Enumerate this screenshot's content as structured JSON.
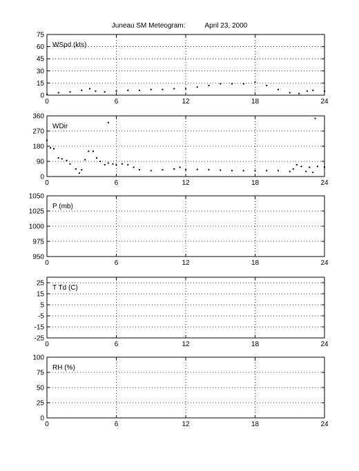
{
  "title": {
    "station": "Juneau SM Meteogram:",
    "date": "April 23, 2000"
  },
  "chart_data": [
    {
      "type": "scatter",
      "panel": "wspd",
      "label": "WSpd (kts)",
      "xlim": [
        0,
        24
      ],
      "xticks": [
        0,
        6,
        12,
        18,
        24
      ],
      "ylim": [
        0,
        75
      ],
      "yticks": [
        0,
        15,
        30,
        45,
        60,
        75
      ],
      "grid": true,
      "points": [
        [
          0,
          1
        ],
        [
          1,
          3
        ],
        [
          2,
          4
        ],
        [
          3,
          6
        ],
        [
          3.7,
          8
        ],
        [
          4.2,
          5
        ],
        [
          5,
          4
        ],
        [
          6,
          5
        ],
        [
          7,
          6
        ],
        [
          8,
          6
        ],
        [
          9,
          7
        ],
        [
          10,
          7
        ],
        [
          11,
          8
        ],
        [
          12,
          8
        ],
        [
          13,
          10
        ],
        [
          14,
          12
        ],
        [
          15,
          14
        ],
        [
          16,
          14
        ],
        [
          17,
          14
        ],
        [
          18,
          16
        ],
        [
          19,
          12
        ],
        [
          20,
          7
        ],
        [
          21,
          3
        ],
        [
          21.8,
          2
        ],
        [
          22.5,
          5
        ],
        [
          23,
          6
        ],
        [
          24,
          5
        ]
      ]
    },
    {
      "type": "scatter",
      "panel": "wdir",
      "label": "WDir",
      "xlim": [
        0,
        24
      ],
      "xticks": [
        0,
        6,
        12,
        18,
        24
      ],
      "ylim": [
        0,
        360
      ],
      "yticks": [
        0,
        90,
        180,
        270,
        360
      ],
      "grid": true,
      "points": [
        [
          0,
          215
        ],
        [
          0.3,
          170
        ],
        [
          0.6,
          165
        ],
        [
          1,
          110
        ],
        [
          1.3,
          105
        ],
        [
          1.7,
          95
        ],
        [
          2,
          75
        ],
        [
          2.5,
          45
        ],
        [
          2.8,
          20
        ],
        [
          3,
          40
        ],
        [
          3.3,
          100
        ],
        [
          3.6,
          150
        ],
        [
          4,
          150
        ],
        [
          4.3,
          110
        ],
        [
          4.6,
          90
        ],
        [
          5,
          70
        ],
        [
          5.3,
          80
        ],
        [
          5.7,
          75
        ],
        [
          6,
          70
        ],
        [
          6.5,
          75
        ],
        [
          7,
          70
        ],
        [
          7.5,
          55
        ],
        [
          8,
          40
        ],
        [
          9,
          35
        ],
        [
          10,
          40
        ],
        [
          11,
          45
        ],
        [
          11.5,
          55
        ],
        [
          12,
          40
        ],
        [
          13,
          42
        ],
        [
          14,
          40
        ],
        [
          15,
          38
        ],
        [
          16,
          35
        ],
        [
          17,
          35
        ],
        [
          18,
          35
        ],
        [
          19,
          35
        ],
        [
          20,
          35
        ],
        [
          21,
          30
        ],
        [
          21.3,
          45
        ],
        [
          21.6,
          70
        ],
        [
          22,
          60
        ],
        [
          22.4,
          30
        ],
        [
          22.7,
          55
        ],
        [
          23,
          25
        ],
        [
          23.4,
          60
        ],
        [
          24,
          55
        ],
        [
          5.3,
          320
        ],
        [
          23.2,
          345
        ]
      ]
    },
    {
      "type": "scatter",
      "panel": "pressure",
      "label": "P (mb)",
      "xlim": [
        0,
        24
      ],
      "xticks": [
        0,
        6,
        12,
        18,
        24
      ],
      "ylim": [
        950,
        1050
      ],
      "yticks": [
        950,
        975,
        1000,
        1025,
        1050
      ],
      "grid": true,
      "points": []
    },
    {
      "type": "scatter",
      "panel": "temp",
      "label": "T Td (C)",
      "xlim": [
        0,
        24
      ],
      "xticks": [
        0,
        6,
        12,
        18,
        24
      ],
      "ylim": [
        -25,
        30
      ],
      "yticks": [
        -25,
        -15,
        -5,
        5,
        15,
        25
      ],
      "grid": true,
      "points": []
    },
    {
      "type": "scatter",
      "panel": "rh",
      "label": "RH (%)",
      "xlim": [
        0,
        24
      ],
      "xticks": [
        0,
        6,
        12,
        18,
        24
      ],
      "ylim": [
        0,
        100
      ],
      "yticks": [
        0,
        25,
        50,
        75,
        100
      ],
      "grid": true,
      "points": []
    }
  ]
}
